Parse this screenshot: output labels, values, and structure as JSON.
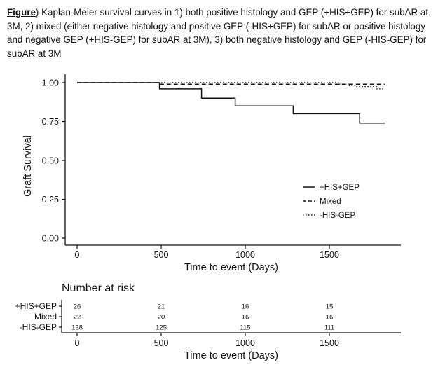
{
  "caption": {
    "prefix": "Figure",
    "text": ") Kaplan-Meier survival curves in 1) both positive histology and GEP (+HIS+GEP) for subAR at 3M, 2) mixed (either negative histology and positive GEP (-HIS+GEP) for subAR or positive histology and negative GEP (+HIS-GEP) for subAR at 3M), 3) both negative histology and GEP (-HIS-GEP) for subAR at 3M"
  },
  "chart_data": [
    {
      "type": "line",
      "subtype": "kaplan-meier-step",
      "title": "",
      "xlabel": "Time to event (Days)",
      "ylabel": "Graft Survival",
      "xlim": [
        -30,
        1880
      ],
      "ylim": [
        0,
        1.0
      ],
      "x_ticks": [
        0,
        500,
        1000,
        1500
      ],
      "x_tick_labels": [
        "0",
        "500",
        "1000",
        "1500"
      ],
      "y_ticks": [
        0,
        0.25,
        0.5,
        0.75,
        1.0
      ],
      "y_tick_labels": [
        "0.00",
        "0.25",
        "0.50",
        "0.75",
        "1.00"
      ],
      "grid": false,
      "legend_position": "right",
      "series": [
        {
          "name": "+HIS+GEP",
          "style": "solid",
          "color": "#111111",
          "points": [
            [
              0,
              1.0
            ],
            [
              490,
              1.0
            ],
            [
              490,
              0.96
            ],
            [
              740,
              0.96
            ],
            [
              740,
              0.9
            ],
            [
              940,
              0.9
            ],
            [
              940,
              0.85
            ],
            [
              1285,
              0.85
            ],
            [
              1285,
              0.8
            ],
            [
              1680,
              0.8
            ],
            [
              1680,
              0.74
            ],
            [
              1830,
              0.74
            ]
          ]
        },
        {
          "name": "Mixed",
          "style": "dashed",
          "color": "#111111",
          "points": [
            [
              0,
              1.0
            ],
            [
              490,
              1.0
            ],
            [
              490,
              0.99
            ],
            [
              1830,
              0.99
            ]
          ]
        },
        {
          "name": "-HIS-GEP",
          "style": "dotted",
          "color": "#111111",
          "points": [
            [
              0,
              1.0
            ],
            [
              1560,
              1.0
            ],
            [
              1560,
              0.99
            ],
            [
              1620,
              0.99
            ],
            [
              1620,
              0.98
            ],
            [
              1660,
              0.98
            ],
            [
              1660,
              0.975
            ],
            [
              1780,
              0.975
            ],
            [
              1780,
              0.96
            ],
            [
              1830,
              0.96
            ]
          ]
        }
      ]
    },
    {
      "type": "table",
      "title": "Number at risk",
      "xlabel": "Time to event (Days)",
      "x_ticks": [
        0,
        500,
        1000,
        1500
      ],
      "x_tick_labels": [
        "0",
        "500",
        "1000",
        "1500"
      ],
      "rows": [
        {
          "name": "+HIS+GEP",
          "values": [
            26,
            21,
            16,
            15
          ]
        },
        {
          "name": "Mixed",
          "values": [
            22,
            20,
            16,
            16
          ]
        },
        {
          "name": "-HIS-GEP",
          "values": [
            138,
            125,
            115,
            111
          ]
        }
      ]
    }
  ]
}
